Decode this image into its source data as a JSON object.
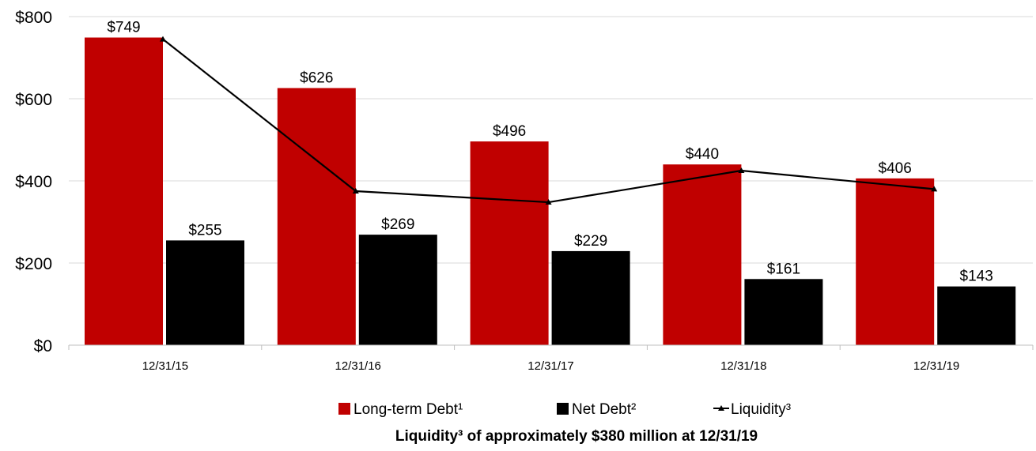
{
  "chart_data": {
    "type": "bar",
    "categories": [
      "12/31/15",
      "12/31/16",
      "12/31/17",
      "12/31/18",
      "12/31/19"
    ],
    "series": [
      {
        "name": "Long-term Debt¹",
        "type": "bar",
        "color": "#c00000",
        "values": [
          749,
          626,
          496,
          440,
          406
        ],
        "labels": [
          "$749",
          "$626",
          "$496",
          "$440",
          "$406"
        ]
      },
      {
        "name": "Net Debt²",
        "type": "bar",
        "color": "#000000",
        "values": [
          255,
          269,
          229,
          161,
          143
        ],
        "labels": [
          "$255",
          "$269",
          "$229",
          "$161",
          "$143"
        ]
      },
      {
        "name": "Liquidity³",
        "type": "line",
        "color": "#000000",
        "values": [
          745,
          375,
          348,
          425,
          380
        ]
      }
    ],
    "ylim": [
      0,
      800
    ],
    "yticks": [
      0,
      200,
      400,
      600,
      800
    ],
    "ytick_labels": [
      "$0",
      "$200",
      "$400",
      "$600",
      "$800"
    ],
    "grid": true,
    "legend_position": "bottom"
  },
  "footnote": "Liquidity³ of approximately $380 million at 12/31/19"
}
